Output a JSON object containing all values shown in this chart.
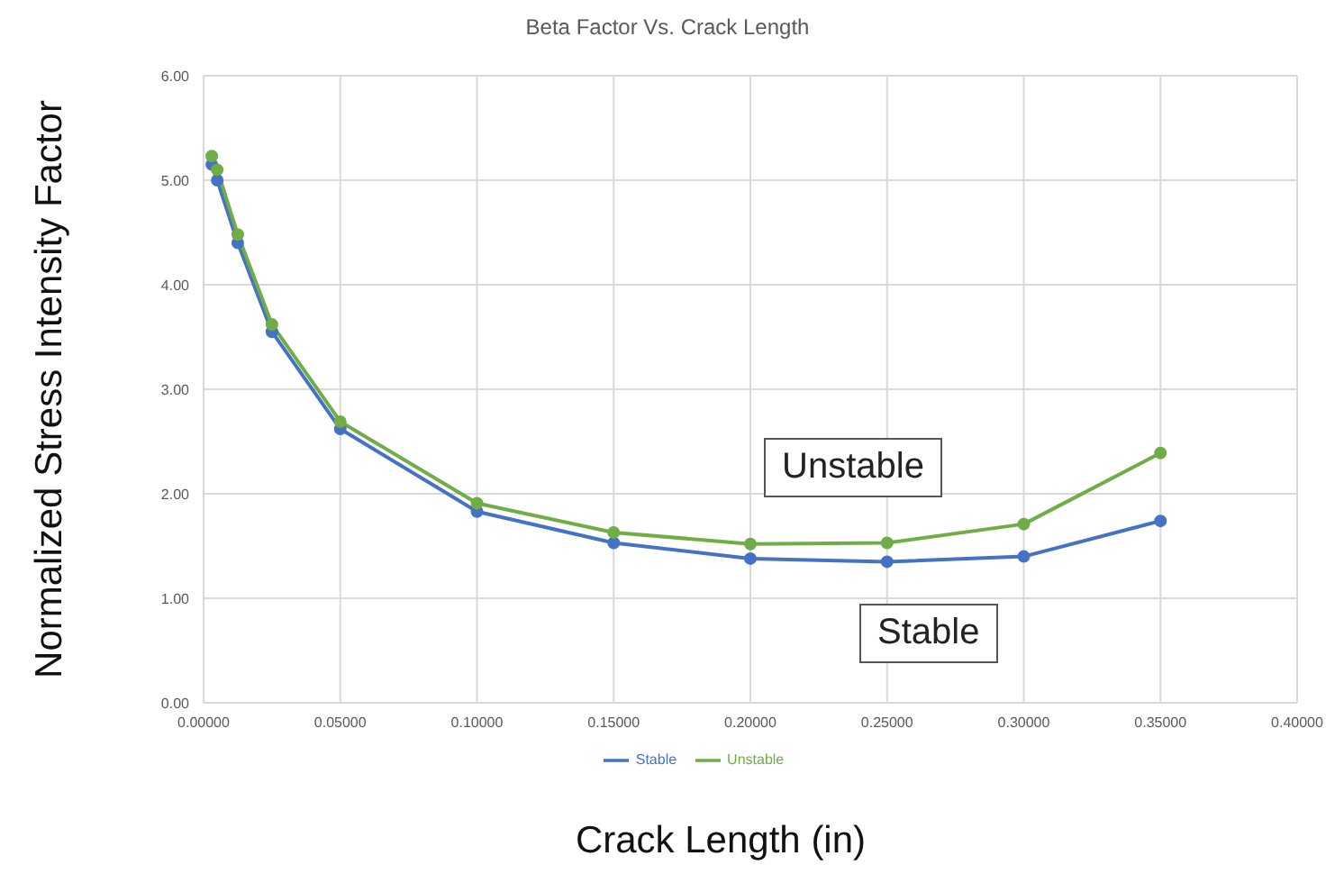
{
  "chart_data": {
    "type": "line",
    "title": "Beta Factor Vs. Crack Length",
    "xlabel": "Crack Length (in)",
    "ylabel": "Normalized Stress Intensity Factor",
    "x": [
      0.003,
      0.005,
      0.0125,
      0.025,
      0.05,
      0.1,
      0.15,
      0.2,
      0.25,
      0.3,
      0.35
    ],
    "series": [
      {
        "name": "Stable",
        "color": "#4472c4",
        "values": [
          5.15,
          5.0,
          4.4,
          3.55,
          2.62,
          1.83,
          1.53,
          1.38,
          1.35,
          1.4,
          1.74
        ]
      },
      {
        "name": "Unstable",
        "color": "#70ad47",
        "values": [
          5.23,
          5.1,
          4.48,
          3.62,
          2.69,
          1.91,
          1.63,
          1.52,
          1.53,
          1.71,
          2.39
        ]
      }
    ],
    "xlim": [
      0,
      0.4
    ],
    "xticks": [
      {
        "value": 0,
        "label": "0.00000"
      },
      {
        "value": 0.05,
        "label": "0.05000"
      },
      {
        "value": 0.1,
        "label": "0.10000"
      },
      {
        "value": 0.15,
        "label": "0.15000"
      },
      {
        "value": 0.2,
        "label": "0.20000"
      },
      {
        "value": 0.25,
        "label": "0.25000"
      },
      {
        "value": 0.3,
        "label": "0.30000"
      },
      {
        "value": 0.35,
        "label": "0.35000"
      },
      {
        "value": 0.4,
        "label": "0.40000"
      }
    ],
    "ylim": [
      0,
      6
    ],
    "yticks": [
      {
        "value": 0,
        "label": "0.00"
      },
      {
        "value": 1,
        "label": "1.00"
      },
      {
        "value": 2,
        "label": "2.00"
      },
      {
        "value": 3,
        "label": "3.00"
      },
      {
        "value": 4,
        "label": "4.00"
      },
      {
        "value": 5,
        "label": "5.00"
      },
      {
        "value": 6,
        "label": "6.00"
      }
    ],
    "annotations": [
      "Unstable",
      "Stable"
    ],
    "grid": true,
    "legend": "bottom",
    "marker": "circle",
    "line_style": "solid"
  }
}
